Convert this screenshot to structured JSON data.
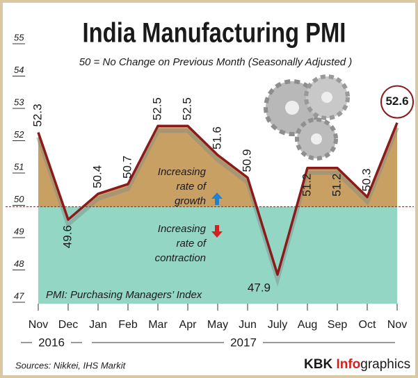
{
  "chart_data": {
    "type": "line",
    "title": "India Manufacturing PMI",
    "subtitle": "50 = No Change on Previous Month (Seasonally Adjusted )",
    "categories": [
      "Nov",
      "Dec",
      "Jan",
      "Feb",
      "Mar",
      "Apr",
      "May",
      "Jun",
      "July",
      "Aug",
      "Sep",
      "Oct",
      "Nov"
    ],
    "values": [
      52.3,
      49.6,
      50.4,
      50.7,
      52.5,
      52.5,
      51.6,
      50.9,
      47.9,
      51.2,
      51.2,
      50.3,
      52.6
    ],
    "color": "#8b1a1a",
    "ylim": [
      47,
      55
    ],
    "yticks": [
      47,
      48,
      49,
      50,
      51,
      52,
      53,
      54,
      55
    ],
    "threshold": 50,
    "threshold_color": "#d62020",
    "above_color": "#c9a064",
    "below_color": "#93d6c3",
    "years": [
      "2016",
      "2017"
    ],
    "annotations": {
      "growth": [
        "Increasing",
        "rate of",
        "growth"
      ],
      "contraction": [
        "Increasing",
        "rate of",
        "contraction"
      ],
      "definition": "PMI: Purchasing Managers’ Index"
    },
    "source": "Sources: Nikkei, IHS Markit",
    "brand": [
      "KBK ",
      "Info",
      "graphics"
    ]
  }
}
